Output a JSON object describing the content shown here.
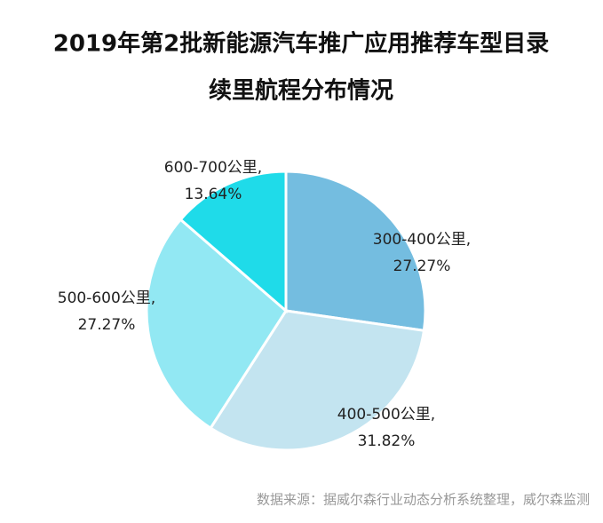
{
  "chart_data": {
    "type": "pie",
    "title": "2019年第2批新能源汽车推广应用推荐车型目录",
    "subtitle": "续里航程分布情况",
    "categories": [
      "300-400公里,",
      "400-500公里,",
      "500-600公里,",
      "600-700公里,"
    ],
    "values": [
      27.27,
      31.82,
      27.27,
      13.64
    ],
    "value_labels": [
      "27.27%",
      "31.82%",
      "27.27%",
      "13.64%"
    ],
    "colors": [
      "#74bde0",
      "#c3e4f0",
      "#92e8f3",
      "#1fdbe9"
    ],
    "source": "数据来源：据威尔森行业动态分析系统整理，威尔森监测"
  }
}
